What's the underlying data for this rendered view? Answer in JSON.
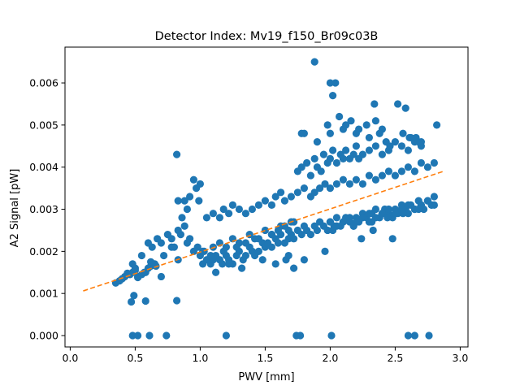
{
  "chart_data": {
    "type": "scatter",
    "title": "Detector Index: Mv19_f150_Br09c03B",
    "xlabel": "PWV [mm]",
    "ylabel": "A2 Signal [pW]",
    "xlim": [
      -0.04,
      3.06
    ],
    "ylim": [
      -0.00027,
      0.00685
    ],
    "xticks": [
      0.0,
      0.5,
      1.0,
      1.5,
      2.0,
      2.5,
      3.0
    ],
    "xtick_labels": [
      "0.0",
      "0.5",
      "1.0",
      "1.5",
      "2.0",
      "2.5",
      "3.0"
    ],
    "yticks": [
      0.0,
      0.001,
      0.002,
      0.003,
      0.004,
      0.005,
      0.006
    ],
    "ytick_labels": [
      "0.000",
      "0.001",
      "0.002",
      "0.003",
      "0.004",
      "0.005",
      "0.006"
    ],
    "colors": {
      "points": "#1f77b4",
      "fit": "#ff7f0e"
    },
    "series": [
      {
        "name": "data",
        "kind": "scatter",
        "x": [
          0.35,
          0.38,
          0.4,
          0.42,
          0.44,
          0.46,
          0.48,
          0.5,
          0.52,
          0.55,
          0.57,
          0.6,
          0.62,
          0.65,
          0.48,
          0.5,
          0.52,
          0.58,
          0.62,
          0.66,
          0.7,
          0.72,
          0.78,
          0.83,
          0.47,
          0.49,
          0.58,
          0.82,
          0.48,
          0.52,
          0.61,
          0.74,
          1.2,
          1.74,
          1.77,
          2.01,
          2.6,
          2.65,
          2.76,
          0.55,
          0.6,
          0.63,
          0.67,
          0.7,
          0.75,
          0.78,
          0.8,
          0.83,
          0.85,
          0.88,
          0.9,
          0.92,
          0.95,
          0.98,
          1.0,
          1.03,
          0.82,
          0.88,
          0.92,
          0.95,
          0.97,
          0.99,
          1.0,
          0.83,
          0.86,
          0.9,
          1.02,
          1.05,
          1.08,
          1.1,
          1.12,
          1.15,
          1.17,
          1.2,
          1.22,
          1.25,
          1.28,
          1.3,
          1.33,
          1.35,
          1.38,
          1.4,
          1.42,
          1.45,
          1.48,
          1.5,
          1.52,
          1.55,
          1.58,
          1.6,
          1.62,
          1.65,
          1.68,
          1.7,
          1.72,
          1.75,
          1.78,
          1.8,
          1.82,
          1.85,
          1.88,
          1.9,
          1.92,
          1.95,
          1.98,
          2.0,
          2.03,
          2.05,
          2.08,
          2.1,
          2.12,
          2.15,
          2.18,
          2.2,
          2.22,
          2.25,
          2.28,
          2.3,
          2.32,
          2.35,
          2.38,
          2.4,
          2.42,
          2.45,
          2.48,
          2.5,
          2.52,
          2.55,
          2.58,
          2.6,
          2.62,
          2.65,
          2.68,
          2.7,
          2.72,
          2.75,
          2.78,
          2.8,
          1.05,
          1.1,
          1.15,
          1.18,
          1.22,
          1.25,
          1.3,
          1.35,
          1.4,
          1.45,
          1.5,
          1.55,
          1.58,
          1.62,
          1.65,
          1.7,
          1.75,
          1.8,
          1.85,
          1.88,
          1.92,
          1.96,
          2.0,
          2.05,
          2.1,
          2.15,
          2.2,
          2.25,
          2.3,
          2.35,
          2.4,
          2.45,
          2.5,
          2.55,
          2.6,
          2.65,
          2.7,
          2.75,
          2.8,
          1.75,
          1.78,
          1.82,
          1.85,
          1.88,
          1.9,
          1.93,
          1.95,
          1.98,
          2.0,
          2.02,
          2.05,
          2.08,
          2.1,
          2.12,
          2.15,
          2.18,
          2.2,
          2.25,
          2.3,
          2.35,
          2.4,
          2.45,
          2.5,
          2.55,
          2.6,
          2.65,
          2.7,
          1.88,
          2.0,
          2.04,
          2.02,
          2.07,
          1.98,
          2.16,
          2.1,
          2.2,
          2.28,
          2.34,
          2.4,
          2.52,
          2.58,
          2.61,
          2.66,
          2.7,
          2.35,
          2.43,
          2.38,
          1.78,
          1.8,
          1.9,
          2.0,
          2.12,
          2.22,
          2.3,
          2.56,
          2.62,
          2.68,
          2.82,
          2.46,
          2.22,
          2.48,
          1.66,
          1.72,
          1.8,
          1.96,
          2.24,
          2.33,
          1.1,
          1.15,
          1.2,
          1.25,
          1.3,
          1.38,
          1.45,
          1.5,
          1.55,
          1.62,
          1.68,
          1.72,
          1.02,
          1.08,
          1.18,
          1.28,
          1.35,
          1.42,
          1.55,
          1.6,
          1.65,
          1.7,
          1.12,
          1.22,
          1.32,
          1.48,
          1.58,
          1.68,
          2.0,
          2.05,
          2.1,
          2.15,
          2.2,
          2.25,
          2.3,
          2.35,
          2.4,
          2.45,
          2.5,
          2.55,
          2.6,
          2.65,
          2.7,
          2.75,
          2.8,
          2.02,
          2.18,
          2.32,
          2.44,
          2.56,
          2.68,
          2.78
        ],
        "y": [
          0.00125,
          0.0013,
          0.00135,
          0.0014,
          0.00148,
          0.00145,
          0.0015,
          0.0016,
          0.00138,
          0.00145,
          0.0015,
          0.0016,
          0.00165,
          0.0017,
          0.0017,
          0.00155,
          0.0014,
          0.0015,
          0.00175,
          0.00165,
          0.0014,
          0.0019,
          0.0021,
          0.0018,
          0.0008,
          0.00095,
          0.00082,
          0.00083,
          0.0,
          0.0,
          0.0,
          0.0,
          0.0,
          0.0,
          0.0,
          0.0,
          0.0,
          0.0,
          0.0,
          0.0019,
          0.0022,
          0.0021,
          0.0023,
          0.0022,
          0.0024,
          0.0023,
          0.0021,
          0.0025,
          0.0024,
          0.0026,
          0.0022,
          0.0023,
          0.002,
          0.0021,
          0.0019,
          0.002,
          0.0043,
          0.0032,
          0.0033,
          0.0037,
          0.0035,
          0.0032,
          0.0036,
          0.0032,
          0.0028,
          0.003,
          0.0017,
          0.0018,
          0.0017,
          0.0018,
          0.0019,
          0.0018,
          0.0017,
          0.0019,
          0.0018,
          0.0017,
          0.0019,
          0.002,
          0.0018,
          0.0019,
          0.0021,
          0.002,
          0.0019,
          0.002,
          0.0022,
          0.0021,
          0.0022,
          0.0021,
          0.0023,
          0.0022,
          0.0024,
          0.0022,
          0.0023,
          0.0024,
          0.0023,
          0.0025,
          0.0024,
          0.0026,
          0.0025,
          0.0024,
          0.0026,
          0.0025,
          0.0027,
          0.0026,
          0.0025,
          0.0027,
          0.0026,
          0.0028,
          0.0026,
          0.0027,
          0.0028,
          0.0027,
          0.0026,
          0.0028,
          0.0027,
          0.0029,
          0.0028,
          0.0027,
          0.0029,
          0.003,
          0.0028,
          0.0029,
          0.003,
          0.0029,
          0.0028,
          0.003,
          0.0029,
          0.0031,
          0.003,
          0.0029,
          0.0031,
          0.003,
          0.0032,
          0.0031,
          0.003,
          0.0032,
          0.0031,
          0.0033,
          0.0028,
          0.0029,
          0.0028,
          0.003,
          0.0029,
          0.0031,
          0.003,
          0.0029,
          0.003,
          0.0031,
          0.0032,
          0.0031,
          0.0033,
          0.0034,
          0.0032,
          0.0033,
          0.0034,
          0.0035,
          0.0033,
          0.0034,
          0.0035,
          0.0036,
          0.0035,
          0.0036,
          0.0037,
          0.0036,
          0.0037,
          0.0036,
          0.0038,
          0.0037,
          0.0038,
          0.0039,
          0.0038,
          0.0039,
          0.004,
          0.0039,
          0.0041,
          0.004,
          0.0041,
          0.0039,
          0.004,
          0.0041,
          0.0038,
          0.0042,
          0.004,
          0.0039,
          0.0043,
          0.0041,
          0.0042,
          0.0044,
          0.0041,
          0.0043,
          0.0042,
          0.0044,
          0.0042,
          0.0043,
          0.0045,
          0.0043,
          0.0044,
          0.0045,
          0.0043,
          0.0044,
          0.0046,
          0.0045,
          0.0044,
          0.0046,
          0.0045,
          0.0065,
          0.006,
          0.006,
          0.0057,
          0.0052,
          0.005,
          0.0051,
          0.0049,
          0.0048,
          0.005,
          0.0055,
          0.0049,
          0.0055,
          0.0054,
          0.0047,
          0.0047,
          0.0046,
          0.0051,
          0.0046,
          0.0048,
          0.0048,
          0.0048,
          0.0046,
          0.0048,
          0.005,
          0.0049,
          0.0047,
          0.0048,
          0.0047,
          0.0046,
          0.005,
          0.0045,
          0.0042,
          0.0023,
          0.0018,
          0.0016,
          0.0018,
          0.002,
          0.0023,
          0.0025,
          0.0021,
          0.0022,
          0.0021,
          0.0023,
          0.0022,
          0.0024,
          0.0023,
          0.0025,
          0.0024,
          0.0026,
          0.0025,
          0.0027,
          0.002,
          0.0019,
          0.002,
          0.0021,
          0.0022,
          0.0023,
          0.0024,
          0.0025,
          0.0026,
          0.0027,
          0.0015,
          0.0017,
          0.0016,
          0.0018,
          0.0017,
          0.0019,
          0.0027,
          0.0026,
          0.0027,
          0.0028,
          0.0027,
          0.0028,
          0.0029,
          0.0028,
          0.0029,
          0.003,
          0.0029,
          0.003,
          0.0031,
          0.003,
          0.0031,
          0.0032,
          0.0031,
          0.0025,
          0.0026,
          0.0027,
          0.0028,
          0.0029,
          0.003,
          0.0031
        ]
      },
      {
        "name": "fit",
        "kind": "line",
        "style": "dashed",
        "x": [
          0.1,
          2.88
        ],
        "y": [
          0.00106,
          0.00391
        ]
      }
    ]
  }
}
